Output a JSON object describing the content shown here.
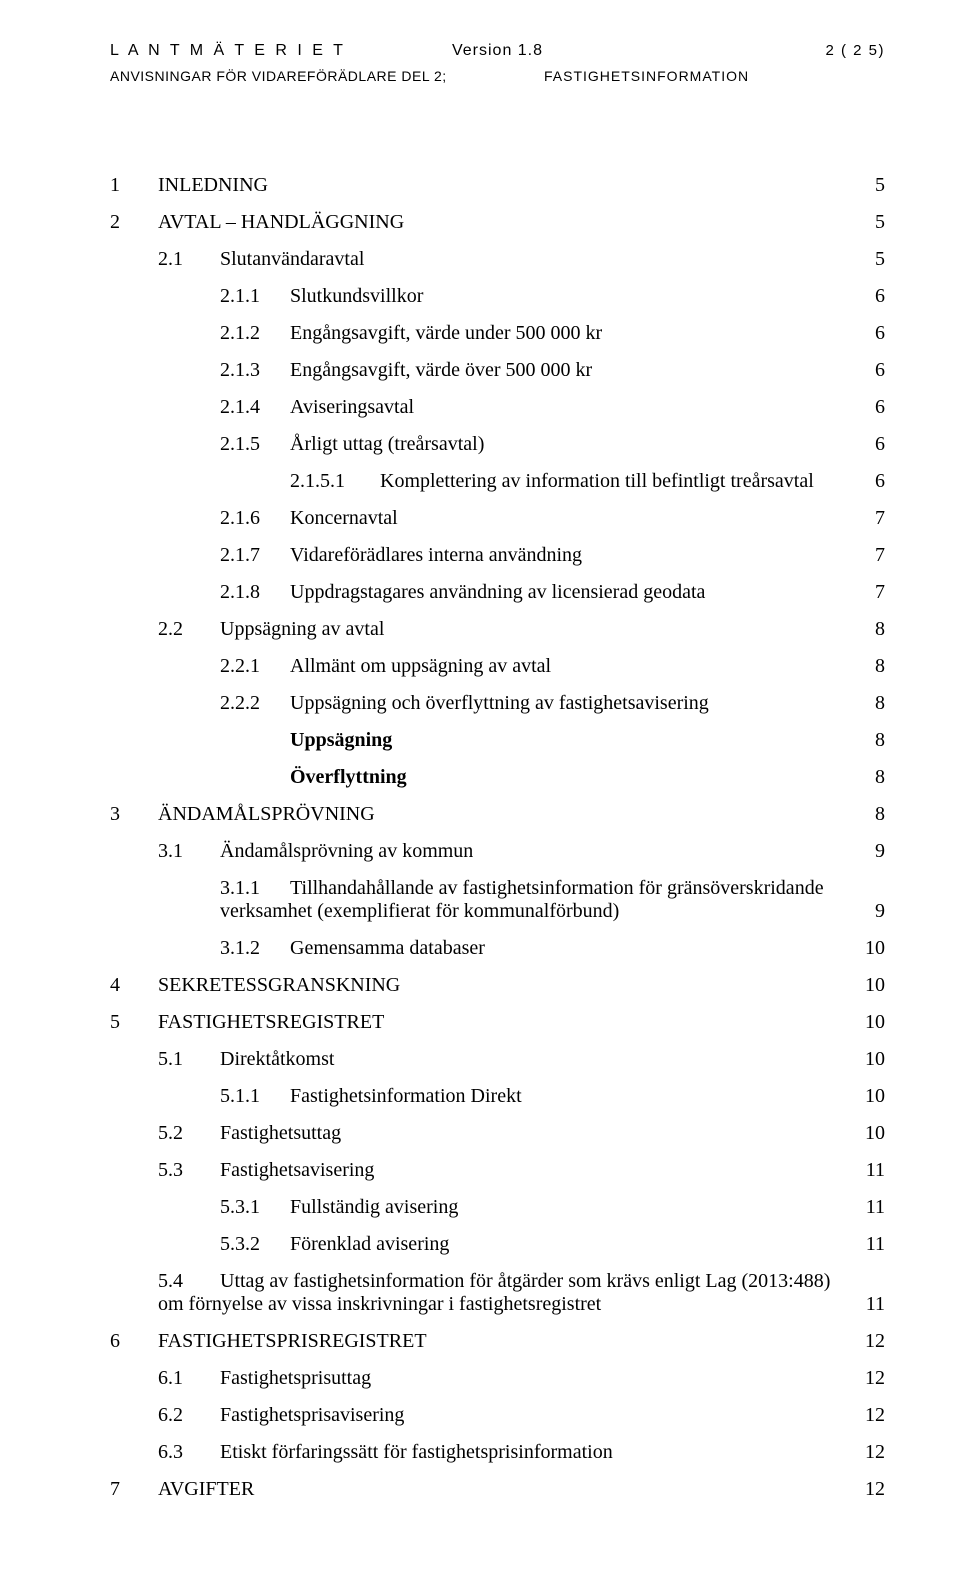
{
  "header": {
    "org": "L A N T M Ä T E R I E T",
    "version": "Version 1.8",
    "page_indicator": "2 ( 2 5)",
    "subtitle_left": "ANVISNINGAR FÖR VIDAREFÖRÄDLARE DEL 2;",
    "subtitle_right": "FASTIGHETSINFORMATION"
  },
  "toc": [
    {
      "level": 1,
      "num": "1",
      "title": "INLEDNING",
      "page": "5"
    },
    {
      "level": 1,
      "num": "2",
      "title": "AVTAL – HANDLÄGGNING",
      "page": "5"
    },
    {
      "level": 2,
      "num": "2.1",
      "title": "Slutanvändaravtal",
      "page": "5"
    },
    {
      "level": 3,
      "num": "2.1.1",
      "title": "Slutkundsvillkor",
      "page": "6"
    },
    {
      "level": 3,
      "num": "2.1.2",
      "title": "Engångsavgift, värde under 500 000 kr",
      "page": "6"
    },
    {
      "level": 3,
      "num": "2.1.3",
      "title": "Engångsavgift, värde över 500 000 kr",
      "page": "6"
    },
    {
      "level": 3,
      "num": "2.1.4",
      "title": "Aviseringsavtal",
      "page": "6"
    },
    {
      "level": 3,
      "num": "2.1.5",
      "title": "Årligt uttag (treårsavtal)",
      "page": "6"
    },
    {
      "level": 4,
      "num": "2.1.5.1",
      "title": "Komplettering av information till befintligt treårsavtal",
      "page": "6"
    },
    {
      "level": 3,
      "num": "2.1.6",
      "title": "Koncernavtal",
      "page": "7"
    },
    {
      "level": 3,
      "num": "2.1.7",
      "title": "Vidareförädlares interna användning",
      "page": "7"
    },
    {
      "level": 3,
      "num": "2.1.8",
      "title": "Uppdragstagares användning av licensierad geodata",
      "page": "7"
    },
    {
      "level": 2,
      "num": "2.2",
      "title": "Uppsägning av avtal",
      "page": "8"
    },
    {
      "level": 3,
      "num": "2.2.1",
      "title": "Allmänt om uppsägning av avtal",
      "page": "8"
    },
    {
      "level": 3,
      "num": "2.2.2",
      "title": "Uppsägning och överflyttning av fastighetsavisering",
      "page": "8"
    },
    {
      "level": 5,
      "num": "",
      "title": "Uppsägning",
      "page": "8"
    },
    {
      "level": 5,
      "num": "",
      "title": "Överflyttning",
      "page": "8"
    },
    {
      "level": 1,
      "num": "3",
      "title": "ÄNDAMÅLSPRÖVNING",
      "page": "8"
    },
    {
      "level": 2,
      "num": "3.1",
      "title": "Ändamålsprövning av kommun",
      "page": "9"
    },
    {
      "level": 3,
      "num": "3.1.1",
      "title": "Tillhandahållande av fastighetsinformation för gränsöverskridande verksamhet (exemplifierat för kommunalförbund)",
      "page": "9",
      "multiline": true,
      "line1": "Tillhandahållande av fastighetsinformation för gränsöverskridande",
      "line2": "verksamhet (exemplifierat för kommunalförbund)"
    },
    {
      "level": 3,
      "num": "3.1.2",
      "title": "Gemensamma databaser",
      "page": "10"
    },
    {
      "level": 1,
      "num": "4",
      "title": "SEKRETESSGRANSKNING",
      "page": "10"
    },
    {
      "level": 1,
      "num": "5",
      "title": "FASTIGHETSREGISTRET",
      "page": "10"
    },
    {
      "level": 2,
      "num": "5.1",
      "title": "Direktåtkomst",
      "page": "10"
    },
    {
      "level": 3,
      "num": "5.1.1",
      "title": "Fastighetsinformation Direkt",
      "page": "10"
    },
    {
      "level": 2,
      "num": "5.2",
      "title": "Fastighetsuttag",
      "page": "10"
    },
    {
      "level": 2,
      "num": "5.3",
      "title": "Fastighetsavisering",
      "page": "11"
    },
    {
      "level": 3,
      "num": "5.3.1",
      "title": "Fullständig avisering",
      "page": "11"
    },
    {
      "level": 3,
      "num": "5.3.2",
      "title": "Förenklad avisering",
      "page": "11"
    },
    {
      "level": 2,
      "num": "5.4",
      "title": "Uttag av fastighetsinformation för åtgärder som krävs enligt Lag (2013:488) om förnyelse av vissa inskrivningar i fastighetsregistret",
      "page": "11",
      "multiline": true,
      "line1": "Uttag av fastighetsinformation för åtgärder som krävs enligt Lag (2013:488)",
      "line2": "om förnyelse av vissa inskrivningar i fastighetsregistret"
    },
    {
      "level": 1,
      "num": "6",
      "title": "FASTIGHETSPRISREGISTRET",
      "page": "12"
    },
    {
      "level": 2,
      "num": "6.1",
      "title": "Fastighetsprisuttag",
      "page": "12"
    },
    {
      "level": 2,
      "num": "6.2",
      "title": "Fastighetsprisavisering",
      "page": "12"
    },
    {
      "level": 2,
      "num": "6.3",
      "title": "Etiskt förfaringssätt för fastighetsprisinformation",
      "page": "12"
    },
    {
      "level": 1,
      "num": "7",
      "title": "AVGIFTER",
      "page": "12"
    }
  ]
}
